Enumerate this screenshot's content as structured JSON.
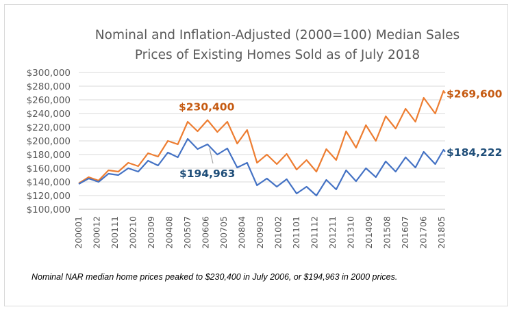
{
  "chart_data": {
    "type": "line",
    "title_lines": [
      "Nominal and Inflation-Adjusted (2000=100) Median Sales",
      "Prices of Existing Homes Sold as of July 2018"
    ],
    "ylim": [
      100000,
      300000
    ],
    "y_ticks": [
      "$100,000",
      "$120,000",
      "$140,000",
      "$160,000",
      "$180,000",
      "$200,000",
      "$220,000",
      "$240,000",
      "$260,000",
      "$280,000",
      "$300,000"
    ],
    "x_ticks": [
      "200001",
      "200012",
      "200111",
      "200210",
      "200309",
      "200408",
      "200507",
      "200606",
      "200705",
      "200804",
      "200903",
      "201002",
      "201101",
      "201112",
      "201211",
      "201310",
      "201409",
      "201508",
      "201607",
      "201706",
      "201805"
    ],
    "x_start": "2000-01",
    "x_end": "2018-07",
    "grid": "horizontal",
    "legend": "none",
    "series": [
      {
        "color": "#ED7D31",
        "points": [
          [
            "2000-01",
            138000
          ],
          [
            "2000-07",
            147000
          ],
          [
            "2001-01",
            142000
          ],
          [
            "2001-07",
            157000
          ],
          [
            "2002-01",
            155000
          ],
          [
            "2002-07",
            168000
          ],
          [
            "2003-01",
            163000
          ],
          [
            "2003-07",
            182000
          ],
          [
            "2004-01",
            177000
          ],
          [
            "2004-07",
            200000
          ],
          [
            "2005-01",
            195000
          ],
          [
            "2005-07",
            228000
          ],
          [
            "2006-01",
            214000
          ],
          [
            "2006-07",
            230400
          ],
          [
            "2007-01",
            213000
          ],
          [
            "2007-07",
            228000
          ],
          [
            "2008-01",
            196000
          ],
          [
            "2008-07",
            216000
          ],
          [
            "2009-01",
            168000
          ],
          [
            "2009-07",
            180000
          ],
          [
            "2010-01",
            166000
          ],
          [
            "2010-07",
            181000
          ],
          [
            "2011-01",
            158000
          ],
          [
            "2011-07",
            172000
          ],
          [
            "2012-01",
            155000
          ],
          [
            "2012-07",
            188000
          ],
          [
            "2013-01",
            172000
          ],
          [
            "2013-07",
            214000
          ],
          [
            "2014-01",
            190000
          ],
          [
            "2014-07",
            223000
          ],
          [
            "2015-01",
            200000
          ],
          [
            "2015-07",
            236000
          ],
          [
            "2016-01",
            218000
          ],
          [
            "2016-07",
            247000
          ],
          [
            "2017-01",
            228000
          ],
          [
            "2017-06",
            263000
          ],
          [
            "2018-01",
            240000
          ],
          [
            "2018-06",
            273000
          ],
          [
            "2018-07",
            269600
          ]
        ],
        "end_label": "$269,600",
        "peak_label": "$230,400"
      },
      {
        "color": "#4472C4",
        "points": [
          [
            "2000-01",
            137000
          ],
          [
            "2000-07",
            145000
          ],
          [
            "2001-01",
            140000
          ],
          [
            "2001-07",
            152000
          ],
          [
            "2002-01",
            150000
          ],
          [
            "2002-07",
            160000
          ],
          [
            "2003-01",
            155000
          ],
          [
            "2003-07",
            171000
          ],
          [
            "2004-01",
            164000
          ],
          [
            "2004-07",
            183000
          ],
          [
            "2005-01",
            176000
          ],
          [
            "2005-07",
            203000
          ],
          [
            "2006-01",
            188000
          ],
          [
            "2006-07",
            194963
          ],
          [
            "2007-01",
            180000
          ],
          [
            "2007-07",
            189000
          ],
          [
            "2008-01",
            161000
          ],
          [
            "2008-07",
            168000
          ],
          [
            "2009-01",
            135000
          ],
          [
            "2009-07",
            145000
          ],
          [
            "2010-01",
            133000
          ],
          [
            "2010-07",
            144000
          ],
          [
            "2011-01",
            123000
          ],
          [
            "2011-07",
            133000
          ],
          [
            "2012-01",
            120000
          ],
          [
            "2012-07",
            143000
          ],
          [
            "2013-01",
            129000
          ],
          [
            "2013-07",
            157000
          ],
          [
            "2014-01",
            141000
          ],
          [
            "2014-07",
            160000
          ],
          [
            "2015-01",
            147000
          ],
          [
            "2015-07",
            170000
          ],
          [
            "2016-01",
            155000
          ],
          [
            "2016-07",
            176000
          ],
          [
            "2017-01",
            161000
          ],
          [
            "2017-06",
            184000
          ],
          [
            "2018-01",
            166000
          ],
          [
            "2018-06",
            187000
          ],
          [
            "2018-07",
            184222
          ]
        ],
        "end_label": "$184,222",
        "peak_label": "$194,963"
      }
    ],
    "note": "Nominal NAR median home prices peaked to $230,400 in July 2006, or $194,963 in 2000 prices."
  }
}
